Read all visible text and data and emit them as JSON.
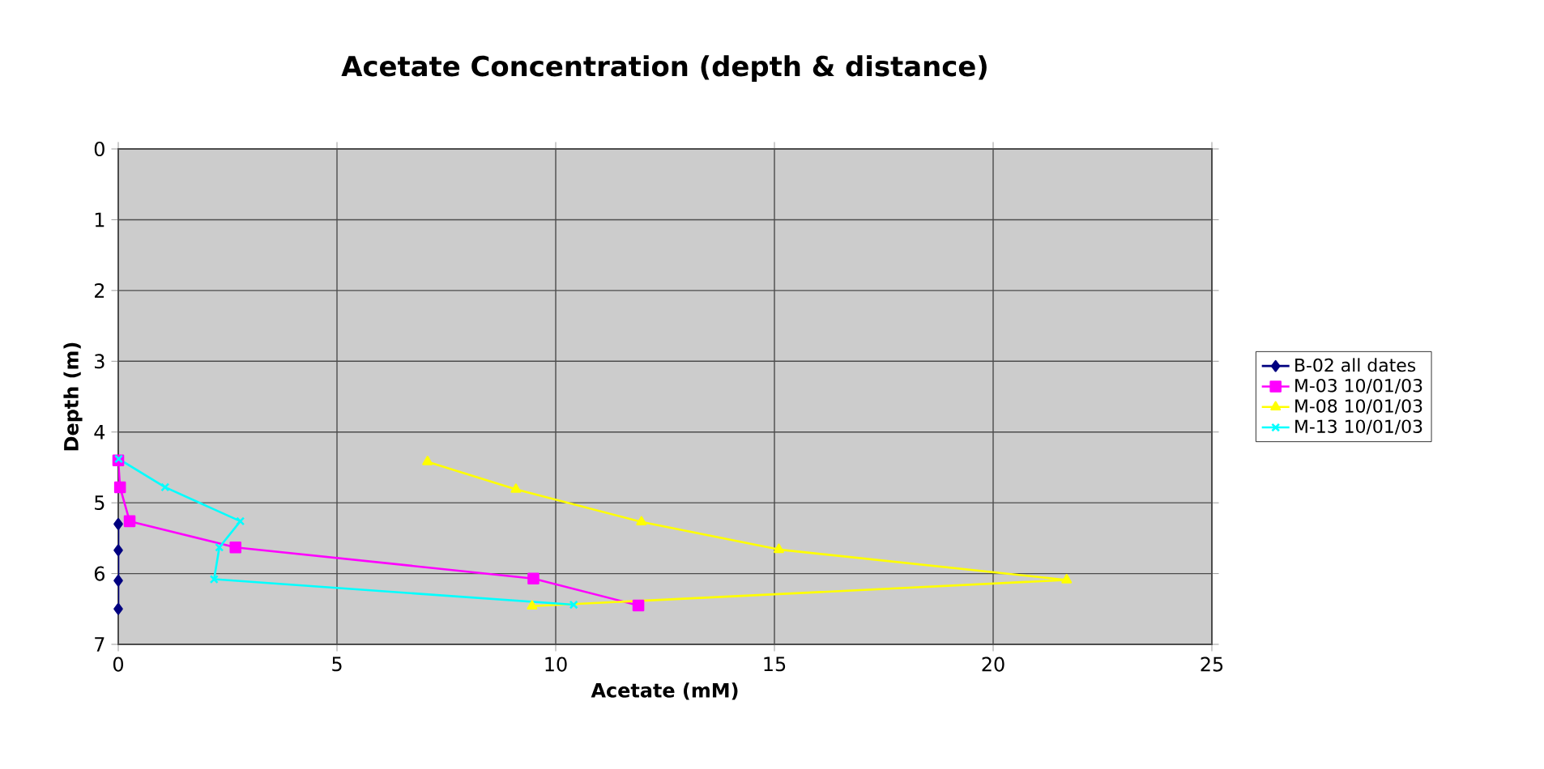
{
  "chart_data": {
    "type": "line",
    "title": "Acetate Concentration (depth & distance)",
    "xlabel": "Acetate (mM)",
    "ylabel": "Depth (m)",
    "xlim": [
      0,
      25
    ],
    "xticks": [
      0,
      5,
      10,
      15,
      20,
      25
    ],
    "ylim": [
      7,
      0
    ],
    "yticks": [
      0,
      1,
      2,
      3,
      4,
      5,
      6,
      7
    ],
    "grid": true,
    "legend": "right",
    "series": [
      {
        "name": "B-02 all dates",
        "color": "#000080",
        "marker": "diamond",
        "x": [
          0,
          0,
          0,
          0
        ],
        "values": [
          5.3,
          5.67,
          6.1,
          6.5
        ]
      },
      {
        "name": "M-03 10/01/03",
        "color": "#ff00ff",
        "marker": "square",
        "x": [
          0,
          0.04,
          0.26,
          2.68,
          9.49,
          11.89
        ],
        "values": [
          4.4,
          4.78,
          5.26,
          5.63,
          6.07,
          6.45
        ]
      },
      {
        "name": "M-08 10/01/03",
        "color": "#ffff00",
        "marker": "triangle",
        "x": [
          7.07,
          9.09,
          11.96,
          15.1,
          21.68,
          9.46
        ],
        "values": [
          4.42,
          4.81,
          5.27,
          5.66,
          6.09,
          6.46
        ]
      },
      {
        "name": "M-13 10/01/03",
        "color": "#00ffff",
        "marker": "cross",
        "x": [
          0.01,
          1.07,
          2.79,
          2.31,
          2.19,
          10.41
        ],
        "values": [
          4.38,
          4.78,
          5.26,
          5.63,
          6.08,
          6.44
        ]
      }
    ]
  }
}
